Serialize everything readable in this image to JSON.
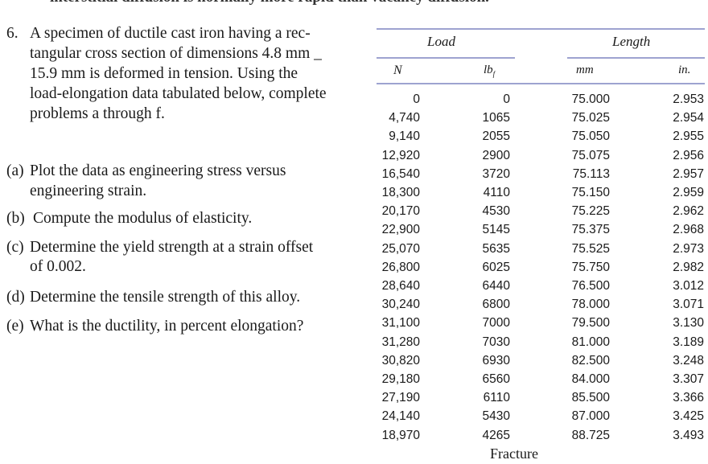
{
  "cut_line": "interstitial diffusion is normally more rapid than vacancy diffusion.",
  "problem": {
    "number": "6.",
    "intro_lines": [
      "A specimen of ductile cast iron having a rec-",
      "tangular cross section of dimensions 4.8 mm _",
      "15.9 mm is deformed in tension. Using the",
      "load-elongation data tabulated below, complete",
      "problems a through f."
    ],
    "parts": [
      {
        "label": "(a)",
        "lines": [
          "Plot the data as engineering stress versus",
          "engineering strain."
        ]
      },
      {
        "label": "(b)",
        "lines": [
          "Compute the modulus of elasticity."
        ]
      },
      {
        "label": "(c)",
        "lines": [
          "Determine the yield strength at a strain offset",
          "of 0.002."
        ]
      },
      {
        "label": "(d)",
        "lines": [
          "Determine the tensile strength of this alloy."
        ]
      },
      {
        "label": "(e)",
        "lines": [
          "What is the ductility, in percent elongation?"
        ]
      }
    ]
  },
  "table": {
    "group_headers": {
      "load": "Load",
      "length": "Length"
    },
    "unit_headers": {
      "n": "N",
      "lbf": "lbf",
      "mm": "mm",
      "in": "in."
    },
    "rows": [
      [
        "0",
        "0",
        "75.000",
        "2.953"
      ],
      [
        "4,740",
        "1065",
        "75.025",
        "2.954"
      ],
      [
        "9,140",
        "2055",
        "75.050",
        "2.955"
      ],
      [
        "12,920",
        "2900",
        "75.075",
        "2.956"
      ],
      [
        "16,540",
        "3720",
        "75.113",
        "2.957"
      ],
      [
        "18,300",
        "4110",
        "75.150",
        "2.959"
      ],
      [
        "20,170",
        "4530",
        "75.225",
        "2.962"
      ],
      [
        "22,900",
        "5145",
        "75.375",
        "2.968"
      ],
      [
        "25,070",
        "5635",
        "75.525",
        "2.973"
      ],
      [
        "26,800",
        "6025",
        "75.750",
        "2.982"
      ],
      [
        "28,640",
        "6440",
        "76.500",
        "3.012"
      ],
      [
        "30,240",
        "6800",
        "78.000",
        "3.071"
      ],
      [
        "31,100",
        "7000",
        "79.500",
        "3.130"
      ],
      [
        "31,280",
        "7030",
        "81.000",
        "3.189"
      ],
      [
        "30,820",
        "6930",
        "82.500",
        "3.248"
      ],
      [
        "29,180",
        "6560",
        "84.000",
        "3.307"
      ],
      [
        "27,190",
        "6110",
        "85.500",
        "3.366"
      ],
      [
        "24,140",
        "5430",
        "87.000",
        "3.425"
      ],
      [
        "18,970",
        "4265",
        "88.725",
        "3.493"
      ]
    ],
    "footer": "Fracture"
  }
}
